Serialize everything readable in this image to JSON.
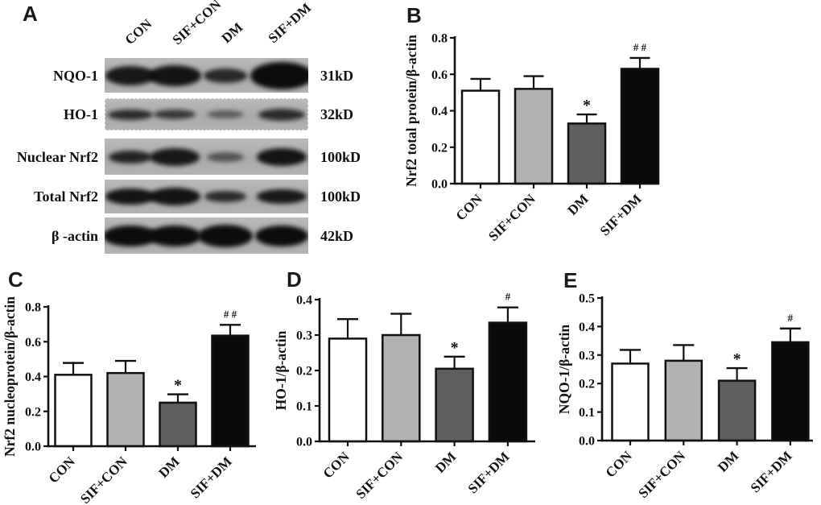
{
  "panel_a": {
    "label": "A",
    "lane_labels": [
      "CON",
      "SIF+CON",
      "DM",
      "SIF+DM"
    ],
    "rows": [
      {
        "protein": "NQO-1",
        "kd": "31kD",
        "bands": [
          [
            62,
            24,
            0.92
          ],
          [
            66,
            26,
            0.95
          ],
          [
            54,
            18,
            0.82
          ],
          [
            78,
            34,
            1.0
          ]
        ]
      },
      {
        "protein": "HO-1",
        "kd": "32kD",
        "bands": [
          [
            56,
            13,
            0.8
          ],
          [
            52,
            12,
            0.72
          ],
          [
            46,
            10,
            0.5
          ],
          [
            58,
            15,
            0.8
          ]
        ]
      },
      {
        "protein": "Nuclear Nrf2",
        "kd": "100kD",
        "bands": [
          [
            54,
            16,
            0.85
          ],
          [
            62,
            22,
            0.92
          ],
          [
            46,
            12,
            0.55
          ],
          [
            62,
            22,
            0.95
          ]
        ]
      },
      {
        "protein": "Total Nrf2",
        "kd": "100kD",
        "bands": [
          [
            62,
            20,
            0.95
          ],
          [
            64,
            22,
            0.95
          ],
          [
            52,
            14,
            0.8
          ],
          [
            62,
            18,
            0.92
          ]
        ]
      },
      {
        "protein": "β -actin",
        "kd": "42kD",
        "bands": [
          [
            68,
            26,
            1.0
          ],
          [
            66,
            26,
            1.0
          ],
          [
            68,
            28,
            1.0
          ],
          [
            66,
            26,
            1.0
          ]
        ]
      }
    ]
  },
  "chart_data": [
    {
      "panel": "B",
      "type": "bar",
      "ylabel": "Nrf2 total protein/β-actin",
      "categories": [
        "CON",
        "SIF+CON",
        "DM",
        "SIF+DM"
      ],
      "values": [
        0.51,
        0.52,
        0.33,
        0.63
      ],
      "errors": [
        0.065,
        0.07,
        0.05,
        0.06
      ],
      "annotations": [
        "",
        "",
        "*",
        "# #"
      ],
      "ylim": [
        0,
        0.8
      ],
      "ytick_step": 0.2,
      "grid": false,
      "legend": "none",
      "bar_colors": [
        "#ffffff",
        "#b2b2b2",
        "#5f5f5f",
        "#0a0a0a"
      ]
    },
    {
      "panel": "C",
      "type": "bar",
      "ylabel": "Nrf2 nucleoprotein/β-actin",
      "categories": [
        "CON",
        "SIF+CON",
        "DM",
        "SIF+DM"
      ],
      "values": [
        0.41,
        0.42,
        0.25,
        0.635
      ],
      "errors": [
        0.068,
        0.07,
        0.048,
        0.062
      ],
      "annotations": [
        "",
        "",
        "*",
        "# #"
      ],
      "ylim": [
        0,
        0.8
      ],
      "ytick_step": 0.2,
      "grid": false,
      "legend": "none",
      "bar_colors": [
        "#ffffff",
        "#b2b2b2",
        "#5f5f5f",
        "#0a0a0a"
      ]
    },
    {
      "panel": "D",
      "type": "bar",
      "ylabel": "HO-1/β-actin",
      "categories": [
        "CON",
        "SIF+CON",
        "DM",
        "SIF+DM"
      ],
      "values": [
        0.29,
        0.3,
        0.205,
        0.335
      ],
      "errors": [
        0.055,
        0.06,
        0.034,
        0.043
      ],
      "annotations": [
        "",
        "",
        "*",
        "#"
      ],
      "ylim": [
        0,
        0.4
      ],
      "ytick_step": 0.1,
      "grid": false,
      "legend": "none",
      "bar_colors": [
        "#ffffff",
        "#b2b2b2",
        "#5f5f5f",
        "#0a0a0a"
      ]
    },
    {
      "panel": "E",
      "type": "bar",
      "ylabel": "NQO-1/β-actin",
      "categories": [
        "CON",
        "SIF+CON",
        "DM",
        "SIF+DM"
      ],
      "values": [
        0.27,
        0.28,
        0.21,
        0.345
      ],
      "errors": [
        0.048,
        0.055,
        0.044,
        0.048
      ],
      "annotations": [
        "",
        "",
        "*",
        "#"
      ],
      "ylim": [
        0,
        0.5
      ],
      "ytick_step": 0.1,
      "grid": false,
      "legend": "none",
      "bar_colors": [
        "#ffffff",
        "#b2b2b2",
        "#5f5f5f",
        "#0a0a0a"
      ]
    }
  ]
}
